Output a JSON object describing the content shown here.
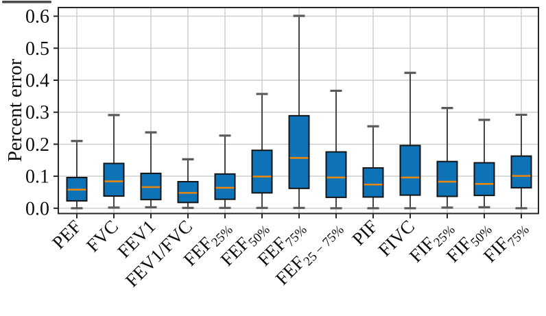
{
  "figure": {
    "ylabel": "Percent error"
  },
  "chart_data": {
    "type": "boxplot",
    "title": "",
    "xlabel": "",
    "ylabel": "Percent error",
    "ylim": [
      -0.0165,
      0.627
    ],
    "yticks": [
      0.0,
      0.1,
      0.2,
      0.3,
      0.4,
      0.5,
      0.6
    ],
    "ytick_labels": [
      "0.0",
      "0.1",
      "0.2",
      "0.3",
      "0.4",
      "0.5",
      "0.6"
    ],
    "grid": true,
    "legend": "none",
    "x_labels_rotation_deg": 45,
    "box_fill_color": "#0d72b6",
    "box_edge_color": "#141414",
    "median_color": "#e8860f",
    "whisker_color": "#333333",
    "cap_color": "#5a5a5a",
    "grid_color": "#cbcbcb",
    "categories": [
      {
        "base": "PEF",
        "sub": ""
      },
      {
        "base": "FVC",
        "sub": ""
      },
      {
        "base": "FEV1",
        "sub": ""
      },
      {
        "base": "FEV1/FVC",
        "sub": ""
      },
      {
        "base": "FEF",
        "sub": "25%"
      },
      {
        "base": "FEF",
        "sub": "50%"
      },
      {
        "base": "FEF",
        "sub": "75%"
      },
      {
        "base": "FEF",
        "sub": "25 − 75%"
      },
      {
        "base": "PIF",
        "sub": ""
      },
      {
        "base": "FIVC",
        "sub": ""
      },
      {
        "base": "FIF",
        "sub": "25%"
      },
      {
        "base": "FIF",
        "sub": "50%"
      },
      {
        "base": "FIF",
        "sub": "75%"
      }
    ],
    "boxes": [
      {
        "label": "PEF",
        "whislo": 0.0,
        "q1": 0.023,
        "med": 0.058,
        "q3": 0.096,
        "whishi": 0.21
      },
      {
        "label": "FVC",
        "whislo": 0.002,
        "q1": 0.038,
        "med": 0.084,
        "q3": 0.14,
        "whishi": 0.291
      },
      {
        "label": "FEV1",
        "whislo": 0.003,
        "q1": 0.027,
        "med": 0.066,
        "q3": 0.109,
        "whishi": 0.237
      },
      {
        "label": "FEV1/FVC",
        "whislo": 0.001,
        "q1": 0.018,
        "med": 0.048,
        "q3": 0.083,
        "whishi": 0.153
      },
      {
        "label": "FEF25%",
        "whislo": 0.001,
        "q1": 0.028,
        "med": 0.064,
        "q3": 0.107,
        "whishi": 0.227
      },
      {
        "label": "FEF50%",
        "whislo": 0.001,
        "q1": 0.048,
        "med": 0.099,
        "q3": 0.181,
        "whishi": 0.357
      },
      {
        "label": "FEF75%",
        "whislo": 0.001,
        "q1": 0.062,
        "med": 0.157,
        "q3": 0.289,
        "whishi": 0.601
      },
      {
        "label": "FEF25-75%",
        "whislo": 0.0,
        "q1": 0.034,
        "med": 0.096,
        "q3": 0.176,
        "whishi": 0.367
      },
      {
        "label": "PIF",
        "whislo": 0.0,
        "q1": 0.035,
        "med": 0.074,
        "q3": 0.126,
        "whishi": 0.256
      },
      {
        "label": "FIVC",
        "whislo": 0.0,
        "q1": 0.041,
        "med": 0.096,
        "q3": 0.196,
        "whishi": 0.423
      },
      {
        "label": "FIF25%",
        "whislo": 0.002,
        "q1": 0.037,
        "med": 0.083,
        "q3": 0.146,
        "whishi": 0.313
      },
      {
        "label": "FIF50%",
        "whislo": 0.003,
        "q1": 0.04,
        "med": 0.076,
        "q3": 0.142,
        "whishi": 0.276
      },
      {
        "label": "FIF75%",
        "whislo": 0.0,
        "q1": 0.064,
        "med": 0.101,
        "q3": 0.163,
        "whishi": 0.292
      }
    ]
  }
}
